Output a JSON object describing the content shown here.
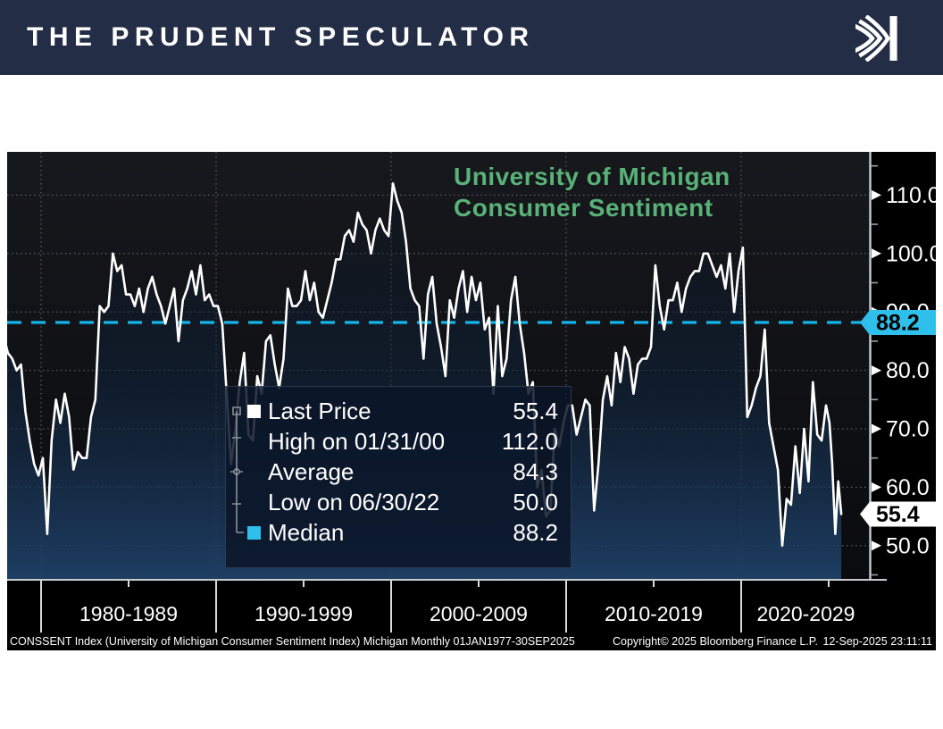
{
  "header": {
    "title": "THE PRUDENT SPECULATOR",
    "logo": "kovitz-k-mark"
  },
  "colors": {
    "header_bg": "#242d46",
    "title_green": "#59b277",
    "median_cyan": "#14b1e7",
    "badge_cyan": "#2fbfeb",
    "line_white": "#ffffff",
    "plot_bg_top": "#17181d",
    "plot_bg_bottom": "#0a0b0e",
    "area_bottom_navy": "#1f4168",
    "grid_gray": "#5a5a5a",
    "axis_gray": "#c8ccd2",
    "label_gutter_black": "#000000"
  },
  "legend": {
    "rows": [
      {
        "label": "Last Price",
        "value": "55.4",
        "marker": "white-square",
        "marker_color": "#ffffff"
      },
      {
        "label": "High on 01/31/00",
        "value": "112.0",
        "marker": "high-tick",
        "marker_color": null
      },
      {
        "label": "Average",
        "value": "84.3",
        "marker": "average-diamond",
        "marker_color": null
      },
      {
        "label": "Low on 06/30/22",
        "value": "50.0",
        "marker": "low-tick",
        "marker_color": null
      },
      {
        "label": "Median",
        "value": "88.2",
        "marker": "cyan-square",
        "marker_color": "#2fbfeb"
      }
    ]
  },
  "footer": {
    "left": "CONSSENT Index (University of Michigan Consumer Sentiment Index) Michigan  Monthly 01JAN1977-30SEP2025",
    "copyright": "Copyright© 2025 Bloomberg Finance L.P.",
    "timestamp": "12-Sep-2025 23:11:11"
  },
  "chart_data": {
    "type": "line",
    "title_line1": "University of Michigan",
    "title_line2": "Consumer Sentiment",
    "series_name": "CONSSENT Index",
    "x_domain": [
      1978.06,
      2027.4
    ],
    "y_domain": [
      44,
      117.4
    ],
    "y_ticks_labeled": [
      110,
      100,
      90,
      80,
      70,
      60,
      50
    ],
    "y_ticks_minor": [
      115,
      105,
      95,
      85,
      75,
      65,
      55,
      45
    ],
    "x_gridlines": [
      1980,
      1990,
      2000,
      2010,
      2020
    ],
    "x_mid_ticks": [
      1985,
      1995,
      2005,
      2015,
      2025
    ],
    "decade_labels": [
      "1980-1989",
      "1990-1999",
      "2000-2009",
      "2010-2019",
      "2020-2029"
    ],
    "median": 88.2,
    "average": 84.3,
    "last_price": 55.4,
    "high": {
      "date": "01/31/00",
      "value": 112.0
    },
    "low": {
      "date": "06/30/22",
      "value": 50.0
    },
    "axis_badges": [
      {
        "text": "88.2",
        "value": 88.2,
        "bg": "#2fbfeb",
        "fg": "#000000"
      },
      {
        "text": "55.4",
        "value": 55.4,
        "bg": "#ffffff",
        "fg": "#000000"
      }
    ],
    "points": [
      [
        1977.1,
        87
      ],
      [
        1977.35,
        89
      ],
      [
        1977.6,
        88
      ],
      [
        1977.85,
        86
      ],
      [
        1978.1,
        83
      ],
      [
        1978.35,
        82
      ],
      [
        1978.6,
        80
      ],
      [
        1978.85,
        81
      ],
      [
        1979.1,
        73
      ],
      [
        1979.35,
        68
      ],
      [
        1979.6,
        64
      ],
      [
        1979.85,
        62
      ],
      [
        1980.1,
        65
      ],
      [
        1980.35,
        52
      ],
      [
        1980.6,
        68
      ],
      [
        1980.85,
        75
      ],
      [
        1981.1,
        71
      ],
      [
        1981.35,
        76
      ],
      [
        1981.6,
        72
      ],
      [
        1981.85,
        63
      ],
      [
        1982.1,
        66
      ],
      [
        1982.35,
        65
      ],
      [
        1982.6,
        65
      ],
      [
        1982.85,
        72
      ],
      [
        1983.1,
        75
      ],
      [
        1983.35,
        91
      ],
      [
        1983.6,
        90
      ],
      [
        1983.85,
        91
      ],
      [
        1984.1,
        100
      ],
      [
        1984.35,
        97
      ],
      [
        1984.6,
        98
      ],
      [
        1984.85,
        93
      ],
      [
        1985.1,
        93
      ],
      [
        1985.35,
        91
      ],
      [
        1985.6,
        94
      ],
      [
        1985.85,
        90
      ],
      [
        1986.1,
        94
      ],
      [
        1986.35,
        96
      ],
      [
        1986.6,
        93
      ],
      [
        1986.85,
        91
      ],
      [
        1987.1,
        88
      ],
      [
        1987.35,
        91
      ],
      [
        1987.6,
        94
      ],
      [
        1987.85,
        85
      ],
      [
        1988.1,
        92
      ],
      [
        1988.35,
        94
      ],
      [
        1988.6,
        97
      ],
      [
        1988.85,
        93
      ],
      [
        1989.1,
        98
      ],
      [
        1989.35,
        92
      ],
      [
        1989.6,
        93
      ],
      [
        1989.85,
        91
      ],
      [
        1990.1,
        91
      ],
      [
        1990.35,
        88
      ],
      [
        1990.6,
        76
      ],
      [
        1990.85,
        64
      ],
      [
        1991.1,
        70
      ],
      [
        1991.35,
        78
      ],
      [
        1991.6,
        83
      ],
      [
        1991.85,
        69
      ],
      [
        1992.1,
        68
      ],
      [
        1992.35,
        79
      ],
      [
        1992.6,
        76
      ],
      [
        1992.85,
        85
      ],
      [
        1993.1,
        86
      ],
      [
        1993.35,
        81
      ],
      [
        1993.6,
        77
      ],
      [
        1993.85,
        82
      ],
      [
        1994.1,
        94
      ],
      [
        1994.35,
        91
      ],
      [
        1994.6,
        91
      ],
      [
        1994.85,
        92
      ],
      [
        1995.1,
        97
      ],
      [
        1995.35,
        92
      ],
      [
        1995.6,
        95
      ],
      [
        1995.85,
        90
      ],
      [
        1996.1,
        89
      ],
      [
        1996.35,
        92
      ],
      [
        1996.6,
        95
      ],
      [
        1996.85,
        99
      ],
      [
        1997.1,
        99
      ],
      [
        1997.35,
        103
      ],
      [
        1997.6,
        104
      ],
      [
        1997.85,
        102
      ],
      [
        1998.1,
        107
      ],
      [
        1998.35,
        105
      ],
      [
        1998.6,
        104
      ],
      [
        1998.85,
        100
      ],
      [
        1999.1,
        104
      ],
      [
        1999.35,
        106
      ],
      [
        1999.6,
        104
      ],
      [
        1999.85,
        103
      ],
      [
        2000.1,
        112
      ],
      [
        2000.35,
        109
      ],
      [
        2000.6,
        107
      ],
      [
        2000.85,
        102
      ],
      [
        2001.1,
        94
      ],
      [
        2001.35,
        92
      ],
      [
        2001.6,
        91
      ],
      [
        2001.85,
        82
      ],
      [
        2002.1,
        93
      ],
      [
        2002.35,
        96
      ],
      [
        2002.6,
        88
      ],
      [
        2002.85,
        84
      ],
      [
        2003.1,
        79
      ],
      [
        2003.35,
        92
      ],
      [
        2003.6,
        89
      ],
      [
        2003.85,
        94
      ],
      [
        2004.1,
        97
      ],
      [
        2004.35,
        90
      ],
      [
        2004.6,
        96
      ],
      [
        2004.85,
        92
      ],
      [
        2005.1,
        95
      ],
      [
        2005.35,
        87
      ],
      [
        2005.6,
        89
      ],
      [
        2005.85,
        76
      ],
      [
        2006.1,
        91
      ],
      [
        2006.35,
        79
      ],
      [
        2006.6,
        82
      ],
      [
        2006.85,
        92
      ],
      [
        2007.1,
        96
      ],
      [
        2007.35,
        88
      ],
      [
        2007.6,
        83
      ],
      [
        2007.85,
        76
      ],
      [
        2008.1,
        78
      ],
      [
        2008.35,
        60
      ],
      [
        2008.6,
        63
      ],
      [
        2008.85,
        55
      ],
      [
        2009.1,
        56
      ],
      [
        2009.35,
        70
      ],
      [
        2009.6,
        67
      ],
      [
        2009.85,
        71
      ],
      [
        2010.1,
        74
      ],
      [
        2010.35,
        74
      ],
      [
        2010.6,
        69
      ],
      [
        2010.85,
        72
      ],
      [
        2011.1,
        75
      ],
      [
        2011.35,
        74
      ],
      [
        2011.6,
        56
      ],
      [
        2011.85,
        64
      ],
      [
        2012.1,
        75
      ],
      [
        2012.35,
        79
      ],
      [
        2012.6,
        74
      ],
      [
        2012.85,
        83
      ],
      [
        2013.1,
        78
      ],
      [
        2013.35,
        84
      ],
      [
        2013.6,
        82
      ],
      [
        2013.85,
        76
      ],
      [
        2014.1,
        81
      ],
      [
        2014.35,
        82
      ],
      [
        2014.6,
        82
      ],
      [
        2014.85,
        84
      ],
      [
        2015.1,
        98
      ],
      [
        2015.35,
        91
      ],
      [
        2015.6,
        87
      ],
      [
        2015.85,
        92
      ],
      [
        2016.1,
        92
      ],
      [
        2016.35,
        95
      ],
      [
        2016.6,
        90
      ],
      [
        2016.85,
        94
      ],
      [
        2017.1,
        96
      ],
      [
        2017.35,
        97
      ],
      [
        2017.6,
        97
      ],
      [
        2017.85,
        100
      ],
      [
        2018.1,
        100
      ],
      [
        2018.35,
        98
      ],
      [
        2018.6,
        96
      ],
      [
        2018.85,
        98
      ],
      [
        2019.1,
        94
      ],
      [
        2019.35,
        100
      ],
      [
        2019.6,
        90
      ],
      [
        2019.85,
        97
      ],
      [
        2020.1,
        101
      ],
      [
        2020.35,
        72
      ],
      [
        2020.6,
        74
      ],
      [
        2020.85,
        77
      ],
      [
        2021.1,
        79
      ],
      [
        2021.35,
        87
      ],
      [
        2021.6,
        71
      ],
      [
        2021.85,
        67
      ],
      [
        2022.1,
        63
      ],
      [
        2022.35,
        50
      ],
      [
        2022.6,
        58
      ],
      [
        2022.85,
        57
      ],
      [
        2023.1,
        67
      ],
      [
        2023.35,
        59
      ],
      [
        2023.6,
        70
      ],
      [
        2023.85,
        61
      ],
      [
        2024.1,
        78
      ],
      [
        2024.35,
        69
      ],
      [
        2024.6,
        68
      ],
      [
        2024.85,
        74
      ],
      [
        2025.05,
        71
      ],
      [
        2025.2,
        64
      ],
      [
        2025.38,
        52
      ],
      [
        2025.55,
        61
      ],
      [
        2025.72,
        55.4
      ]
    ]
  }
}
